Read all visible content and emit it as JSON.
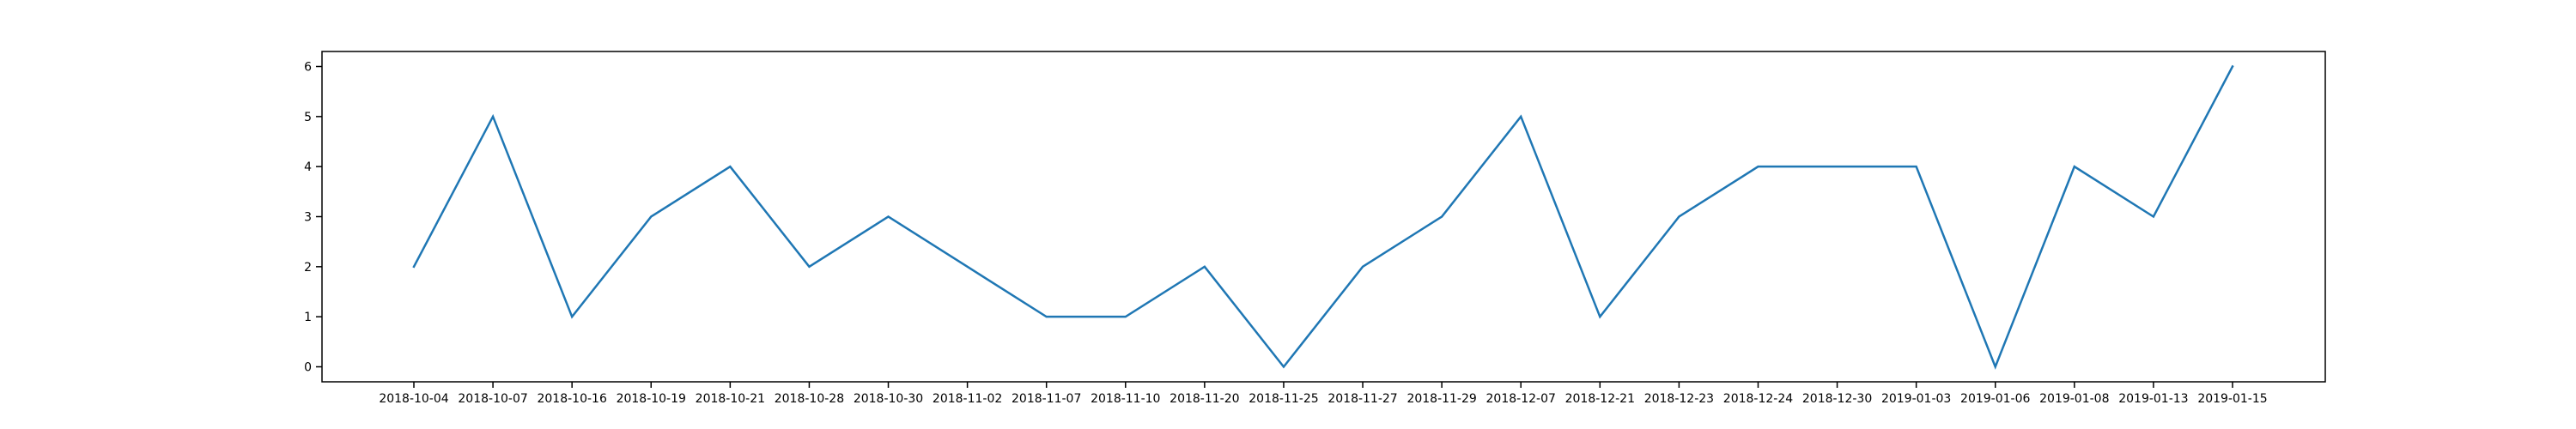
{
  "colors": {
    "series_line": "#1f77b4",
    "background": "#ffffff",
    "axis": "#000000"
  },
  "chart_data": {
    "type": "line",
    "title": "",
    "xlabel": "",
    "ylabel": "",
    "grid": false,
    "legend": "none",
    "x_is_categorical": true,
    "ylim": [
      -0.3,
      6.3
    ],
    "y_ticks": [
      0,
      1,
      2,
      3,
      4,
      5,
      6
    ],
    "categories": [
      "2018-10-04",
      "2018-10-07",
      "2018-10-16",
      "2018-10-19",
      "2018-10-21",
      "2018-10-28",
      "2018-10-30",
      "2018-11-02",
      "2018-11-07",
      "2018-11-10",
      "2018-11-20",
      "2018-11-25",
      "2018-11-27",
      "2018-11-29",
      "2018-12-07",
      "2018-12-21",
      "2018-12-23",
      "2018-12-24",
      "2018-12-30",
      "2019-01-03",
      "2019-01-06",
      "2019-01-08",
      "2019-01-13",
      "2019-01-15"
    ],
    "series": [
      {
        "values": [
          2,
          5,
          1,
          3,
          4,
          2,
          3,
          2,
          1,
          1,
          2,
          0,
          2,
          3,
          5,
          1,
          3,
          4,
          4,
          4,
          0,
          4,
          3,
          6
        ]
      }
    ]
  }
}
